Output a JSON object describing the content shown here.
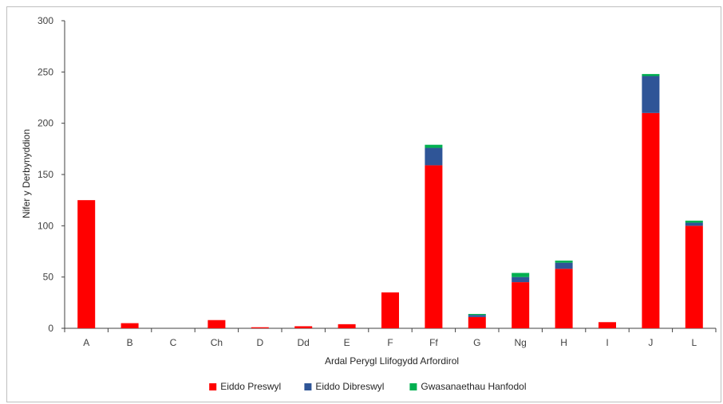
{
  "chart_data": {
    "type": "bar",
    "stacked": true,
    "categories": [
      "A",
      "B",
      "C",
      "Ch",
      "D",
      "Dd",
      "E",
      "F",
      "Ff",
      "G",
      "Ng",
      "H",
      "I",
      "J",
      "L"
    ],
    "series": [
      {
        "name": "Eiddo Preswyl",
        "color": "#ff0000",
        "values": [
          125,
          5,
          0,
          8,
          1,
          2,
          4,
          35,
          159,
          11,
          45,
          58,
          6,
          210,
          100
        ]
      },
      {
        "name": "Eiddo Dibreswyl",
        "color": "#2f5597",
        "values": [
          0,
          0,
          0,
          0,
          0,
          0,
          0,
          0,
          17,
          2,
          5,
          6,
          0,
          36,
          3
        ]
      },
      {
        "name": "Gwasanaethau Hanfodol",
        "color": "#00b050",
        "values": [
          0,
          0,
          0,
          0,
          0,
          0,
          0,
          0,
          3,
          1,
          4,
          2,
          0,
          2,
          2
        ]
      }
    ],
    "xlabel": "Ardal Perygl Llifogydd Arfordirol",
    "ylabel": "Nifer y Derbynyddion",
    "ylim": [
      0,
      300
    ],
    "yticks": [
      0,
      50,
      100,
      150,
      200,
      250,
      300
    ],
    "grid": false,
    "legend_position": "bottom"
  }
}
